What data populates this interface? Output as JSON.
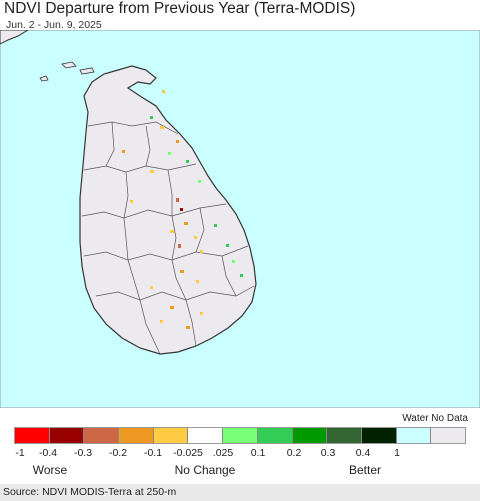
{
  "header": {
    "title": "NDVI Departure from Previous Year (Terra-MODIS)",
    "subtitle": "Jun. 2 - Jun. 9, 2025"
  },
  "map": {
    "water_color": "#c9ffff",
    "land_color": "#ece9ef",
    "border_color": "#333333"
  },
  "legend": {
    "nodata_label": "Water No Data",
    "swatches": [
      "#ff0000",
      "#990000",
      "#cc6644",
      "#ee9922",
      "#ffcc44",
      "#ffffff",
      "#77ff77",
      "#33cc55",
      "#009900",
      "#336633",
      "#002200",
      "#c9ffff",
      "#ece9ef"
    ],
    "ticks": [
      "-1",
      "-0.4",
      "-0.3",
      "-0.2",
      "-0.1",
      "-0.025",
      ".025",
      "0.1",
      "0.2",
      "0.3",
      "0.4",
      "1"
    ],
    "categories": [
      "Worse",
      "No Change",
      "Better"
    ]
  },
  "footer": {
    "source": "Source: NDVI MODIS-Terra at 250-m"
  }
}
